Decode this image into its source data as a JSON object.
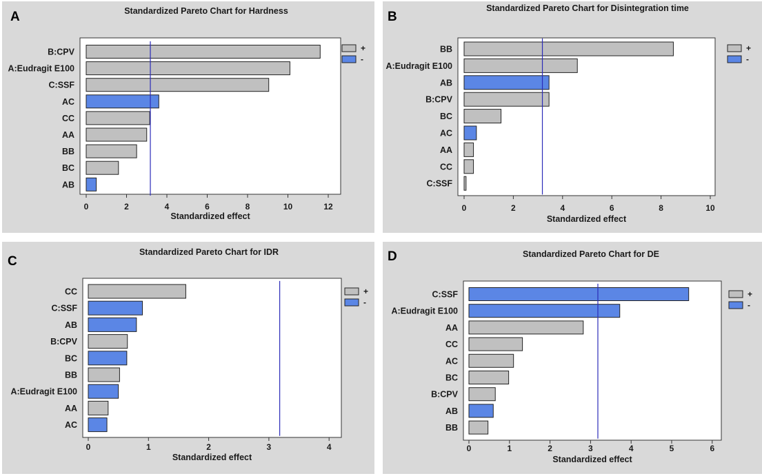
{
  "chart_data": [
    {
      "panel": "A",
      "type": "bar",
      "orientation": "horizontal",
      "title": "Standardized Pareto Chart for Hardness",
      "xlabel": "Standardized effect",
      "xlim": [
        0,
        12
      ],
      "xticks": [
        0,
        2,
        4,
        6,
        8,
        10,
        12
      ],
      "threshold": 3.18,
      "legend": {
        "entries": [
          "+",
          "-"
        ],
        "colors": [
          "#c0c0c0",
          "#5b86e5"
        ],
        "position": "top-right"
      },
      "categories": [
        "B:CPV",
        "A:Eudragit E100",
        "C:SSF",
        "AC",
        "CC",
        "AA",
        "BB",
        "BC",
        "AB"
      ],
      "values": [
        11.6,
        10.1,
        9.05,
        3.6,
        3.15,
        3.0,
        2.5,
        1.6,
        0.5
      ],
      "signs": [
        "+",
        "+",
        "+",
        "-",
        "+",
        "+",
        "+",
        "+",
        "-"
      ]
    },
    {
      "panel": "B",
      "type": "bar",
      "orientation": "horizontal",
      "title": "Standardized Pareto Chart for Disintegration time",
      "xlabel": "Standardized effect",
      "xlim": [
        0,
        10
      ],
      "xticks": [
        0,
        2,
        4,
        6,
        8,
        10
      ],
      "threshold": 3.18,
      "legend": {
        "entries": [
          "+",
          "-"
        ],
        "colors": [
          "#c0c0c0",
          "#5b86e5"
        ],
        "position": "top-right"
      },
      "categories": [
        "BB",
        "A:Eudragit E100",
        "AB",
        "B:CPV",
        "BC",
        "AC",
        "AA",
        "CC",
        "C:SSF"
      ],
      "values": [
        8.5,
        4.6,
        3.45,
        3.45,
        1.5,
        0.5,
        0.38,
        0.38,
        0.08
      ],
      "signs": [
        "+",
        "+",
        "-",
        "+",
        "+",
        "-",
        "+",
        "+",
        "+"
      ]
    },
    {
      "panel": "C",
      "type": "bar",
      "orientation": "horizontal",
      "title": "Standardized Pareto Chart for IDR",
      "xlabel": "Standardized effect",
      "xlim": [
        0,
        4
      ],
      "xticks": [
        0,
        1,
        2,
        3,
        4
      ],
      "threshold": 3.18,
      "legend": {
        "entries": [
          "+",
          "-"
        ],
        "colors": [
          "#c0c0c0",
          "#5b86e5"
        ],
        "position": "top-right"
      },
      "categories": [
        "CC",
        "C:SSF",
        "AB",
        "B:CPV",
        "BC",
        "BB",
        "A:Eudragit E100",
        "AA",
        "AC"
      ],
      "values": [
        1.62,
        0.9,
        0.8,
        0.65,
        0.64,
        0.52,
        0.5,
        0.33,
        0.31
      ],
      "signs": [
        "+",
        "-",
        "-",
        "+",
        "-",
        "+",
        "-",
        "+",
        "-"
      ]
    },
    {
      "panel": "D",
      "type": "bar",
      "orientation": "horizontal",
      "title": "Standardized Pareto Chart for DE",
      "xlabel": "Standardized effect",
      "xlim": [
        0,
        6
      ],
      "xticks": [
        0,
        1,
        2,
        3,
        4,
        5,
        6
      ],
      "threshold": 3.18,
      "legend": {
        "entries": [
          "+",
          "-"
        ],
        "colors": [
          "#c0c0c0",
          "#5b86e5"
        ],
        "position": "top-right"
      },
      "categories": [
        "C:SSF",
        "A:Eudragit E100",
        "AA",
        "CC",
        "AC",
        "BC",
        "B:CPV",
        "AB",
        "BB"
      ],
      "values": [
        5.42,
        3.72,
        2.82,
        1.32,
        1.1,
        0.98,
        0.65,
        0.6,
        0.47
      ],
      "signs": [
        "-",
        "-",
        "+",
        "+",
        "+",
        "+",
        "+",
        "-",
        "+"
      ]
    }
  ]
}
